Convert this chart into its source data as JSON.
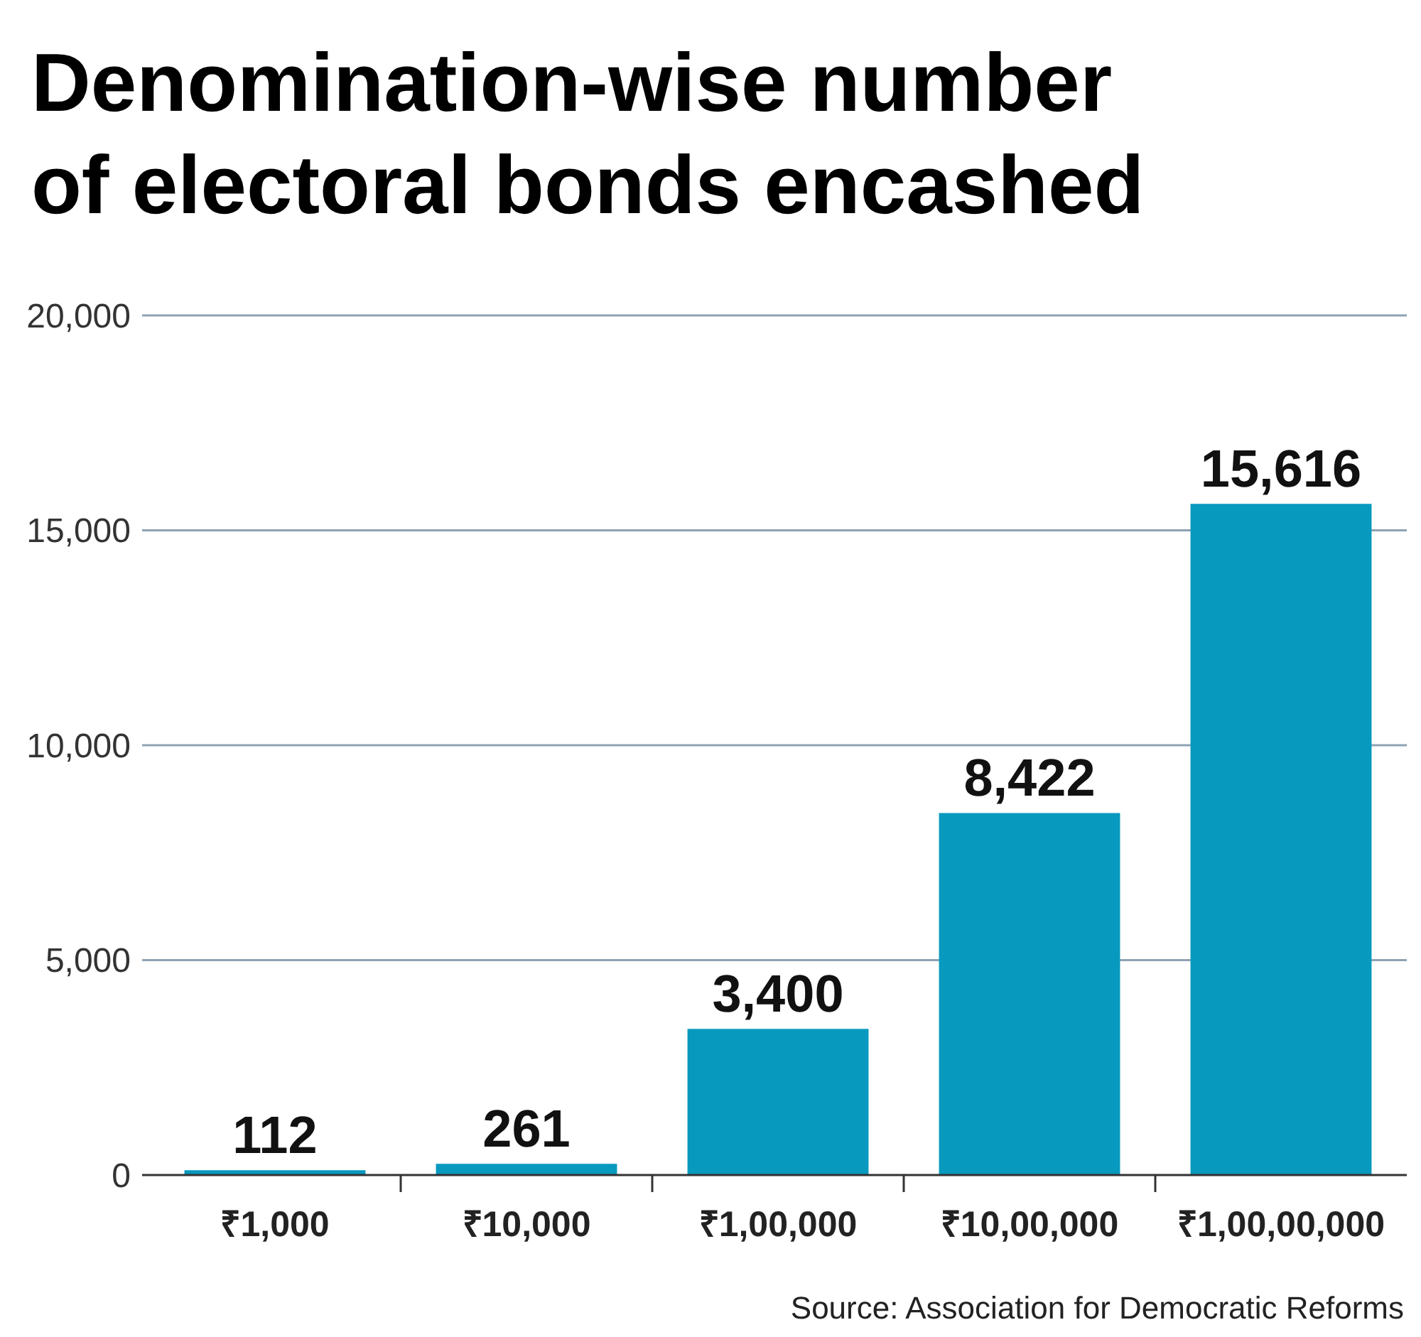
{
  "chart_data": {
    "type": "bar",
    "title": "Denomination-wise number of electoral bonds encashed",
    "categories": [
      "₹1,000",
      "₹10,000",
      "₹1,00,000",
      "₹10,00,000",
      "₹1,00,00,000"
    ],
    "values": [
      112,
      261,
      3400,
      8422,
      15616
    ],
    "color": "#0899bf",
    "ylim": [
      0,
      20000
    ],
    "yticks": [
      {
        "value": 0,
        "label": "0"
      },
      {
        "value": 5000,
        "label": "5,000"
      },
      {
        "value": 10000,
        "label": "10,000"
      },
      {
        "value": 15000,
        "label": "15,000"
      },
      {
        "value": 20000,
        "label": "20,000"
      }
    ],
    "grid": "y",
    "value_labels": [
      "112",
      "261",
      "3,400",
      "8,422",
      "15,616"
    ],
    "annotations": [
      "Source: Association for Democratic Reforms"
    ]
  }
}
